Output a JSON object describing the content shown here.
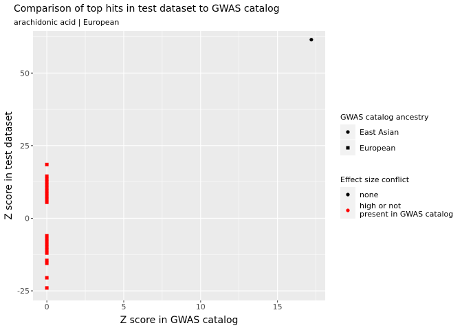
{
  "chart_data": {
    "type": "scatter",
    "title": "Comparison of top hits in test dataset to GWAS catalog",
    "subtitle": "arachidonic acid | European",
    "xlabel": "Z score in GWAS catalog",
    "ylabel": "Z score in test dataset",
    "xlim": [
      -0.9,
      18.1
    ],
    "ylim": [
      -28.3,
      64.5
    ],
    "xticks": [
      0,
      5,
      10,
      15
    ],
    "xtick_labels": [
      "0",
      "5",
      "10",
      "15"
    ],
    "yticks": [
      -25,
      0,
      25,
      50
    ],
    "ytick_labels": [
      "-25",
      "0",
      "25",
      "50"
    ],
    "grid": true,
    "background": "#ebebeb",
    "legend_position": "right",
    "legends": [
      {
        "title": "GWAS catalog ancestry",
        "entries": [
          {
            "label": "East Asian",
            "shape": "circle"
          },
          {
            "label": "European",
            "shape": "square"
          }
        ]
      },
      {
        "title": "Effect size conflict",
        "entries": [
          {
            "label": "none",
            "color": "#000000"
          },
          {
            "label": "high or not\npresent in GWAS catalog",
            "color": "#ff0000"
          }
        ]
      }
    ],
    "series": [
      {
        "ancestry": "East Asian",
        "conflict": "none",
        "color": "#000000",
        "shape": "circle",
        "points": [
          [
            17.2,
            61.5
          ]
        ]
      },
      {
        "ancestry": "European",
        "conflict": "high or not present in GWAS catalog",
        "color": "#ff0000",
        "shape": "square",
        "points": [
          [
            0,
            18.5
          ],
          [
            0,
            14.5
          ],
          [
            0,
            13.5
          ],
          [
            0,
            12.5
          ],
          [
            0,
            11.5
          ],
          [
            0,
            10.5
          ],
          [
            0,
            9.5
          ],
          [
            0,
            8.5
          ],
          [
            0,
            7.5
          ],
          [
            0,
            6.5
          ],
          [
            0,
            5.5
          ],
          [
            0,
            -6.0
          ],
          [
            0,
            -7.0
          ],
          [
            0,
            -8.0
          ],
          [
            0,
            -9.0
          ],
          [
            0,
            -10.0
          ],
          [
            0,
            -11.0
          ],
          [
            0,
            -12.0
          ],
          [
            0,
            -14.5
          ],
          [
            0,
            -15.5
          ],
          [
            0,
            -20.5
          ],
          [
            0,
            -24.0
          ]
        ]
      }
    ]
  }
}
